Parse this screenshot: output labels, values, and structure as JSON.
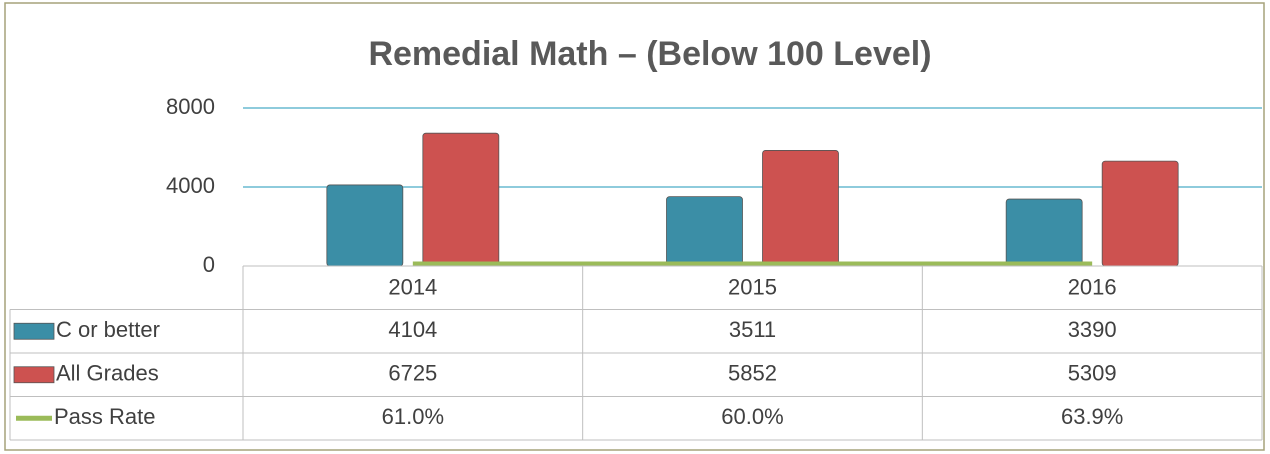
{
  "chart_data": {
    "type": "bar",
    "title": "Remedial Math – (Below 100 Level)",
    "categories": [
      "2014",
      "2015",
      "2016"
    ],
    "series": [
      {
        "name": "C or better",
        "color": "#3b8ea6",
        "values": [
          4104,
          3511,
          3390
        ]
      },
      {
        "name": "All Grades",
        "color": "#cd5250",
        "values": [
          6725,
          5852,
          5309
        ]
      },
      {
        "name": "Pass Rate",
        "type": "line",
        "color": "#9bbb59",
        "values": [
          0.61,
          0.6,
          0.639
        ],
        "value_labels": [
          "61.0%",
          "60.0%",
          "63.9%"
        ]
      }
    ],
    "ylim": [
      0,
      8000
    ],
    "yticks": [
      0,
      4000,
      8000
    ],
    "grid": true,
    "data_table": true
  }
}
